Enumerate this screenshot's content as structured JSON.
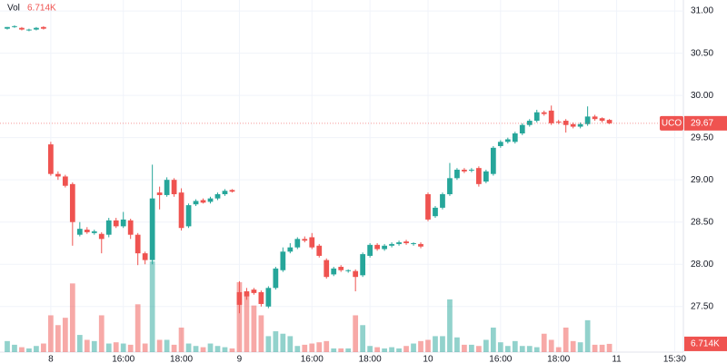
{
  "chart_data": {
    "type": "candlestick",
    "volume_label": "Vol",
    "last_volume_label": "6.714K",
    "symbol": "UCO",
    "up_color": "#26a69a",
    "down_color": "#ef5350",
    "grid": true,
    "categories": [
      null,
      null,
      null,
      null,
      null,
      null,
      null,
      null,
      null,
      null,
      null,
      null,
      null,
      null,
      null,
      null,
      null,
      null,
      null,
      null,
      null,
      null,
      null,
      null,
      null,
      null,
      null,
      null,
      null,
      null,
      null,
      null,
      null,
      null,
      null,
      null,
      null,
      null,
      null,
      null,
      null,
      null,
      null,
      null,
      null,
      null,
      null,
      null,
      null,
      null,
      null,
      null,
      null,
      null,
      null,
      null,
      null,
      null,
      null,
      null,
      null,
      null,
      null,
      null,
      null,
      null,
      null,
      null,
      null,
      null,
      null,
      null,
      null,
      null,
      null,
      null,
      null,
      null,
      null,
      null,
      null,
      null,
      null,
      null
    ],
    "open": [
      30.79,
      30.81,
      30.8,
      30.77,
      30.78,
      30.81,
      29.42,
      29.07,
      29.04,
      28.95,
      28.35,
      28.41,
      28.37,
      28.36,
      28.35,
      28.52,
      28.45,
      28.52,
      28.35,
      28.13,
      28.05,
      28.85,
      28.82,
      29.0,
      28.85,
      28.45,
      28.71,
      28.76,
      28.74,
      28.78,
      28.83,
      28.88,
      27.67,
      27.68,
      27.7,
      27.67,
      27.5,
      27.72,
      27.93,
      28.15,
      28.2,
      28.3,
      28.32,
      28.22,
      28.05,
      27.88,
      27.97,
      27.92,
      27.92,
      27.87,
      28.1,
      28.23,
      28.18,
      28.22,
      28.24,
      28.27,
      28.24,
      28.24,
      28.83,
      28.57,
      28.67,
      28.83,
      29.02,
      29.12,
      29.11,
      29.14,
      28.98,
      29.07,
      29.4,
      29.45,
      29.45,
      29.55,
      29.65,
      29.7,
      29.8,
      29.82,
      29.69,
      29.7,
      29.66,
      29.63,
      29.66,
      29.75,
      29.73,
      29.71
    ],
    "high": [
      30.81,
      30.83,
      30.81,
      30.79,
      30.81,
      30.82,
      29.45,
      29.1,
      29.06,
      28.97,
      28.5,
      28.44,
      28.41,
      28.38,
      28.55,
      28.55,
      28.62,
      28.54,
      28.37,
      28.15,
      29.18,
      28.92,
      29.03,
      29.02,
      28.9,
      28.72,
      28.77,
      28.78,
      28.8,
      28.85,
      28.89,
      28.89,
      27.8,
      27.72,
      27.72,
      27.69,
      27.74,
      27.97,
      28.2,
      28.25,
      28.32,
      28.33,
      28.37,
      28.24,
      28.07,
      27.97,
      27.99,
      27.94,
      27.94,
      28.14,
      28.25,
      28.25,
      28.24,
      28.26,
      28.28,
      28.29,
      28.26,
      28.26,
      28.85,
      28.69,
      28.85,
      29.2,
      29.14,
      29.14,
      29.14,
      29.16,
      29.12,
      29.4,
      29.47,
      29.5,
      29.57,
      29.67,
      29.72,
      29.83,
      29.82,
      29.88,
      29.71,
      29.72,
      29.68,
      29.68,
      29.87,
      29.77,
      29.74,
      29.72
    ],
    "low": [
      30.78,
      30.8,
      30.77,
      30.76,
      30.77,
      30.78,
      29.05,
      29.0,
      28.91,
      28.22,
      28.33,
      28.36,
      28.35,
      28.13,
      28.32,
      28.43,
      28.43,
      28.3,
      27.99,
      28.0,
      28.0,
      28.65,
      28.8,
      28.8,
      28.4,
      28.43,
      28.69,
      28.72,
      28.72,
      28.76,
      28.81,
      28.85,
      27.42,
      27.58,
      27.64,
      27.5,
      27.48,
      27.7,
      27.91,
      28.13,
      28.18,
      28.26,
      28.18,
      28.08,
      27.83,
      27.86,
      27.91,
      27.9,
      27.68,
      27.85,
      28.08,
      28.16,
      28.16,
      28.2,
      28.22,
      28.23,
      28.22,
      28.19,
      28.51,
      28.55,
      28.65,
      28.81,
      29.0,
      29.08,
      29.09,
      28.92,
      28.96,
      29.05,
      29.38,
      29.43,
      29.43,
      29.53,
      29.63,
      29.68,
      29.76,
      29.65,
      29.66,
      29.56,
      29.61,
      29.61,
      29.64,
      29.7,
      29.68,
      29.66
    ],
    "close": [
      30.81,
      30.82,
      30.78,
      30.78,
      30.8,
      30.79,
      29.07,
      29.04,
      28.93,
      28.5,
      28.42,
      28.38,
      28.39,
      28.3,
      28.52,
      28.45,
      28.53,
      28.35,
      28.13,
      28.05,
      28.78,
      28.82,
      29.0,
      28.83,
      28.43,
      28.7,
      28.75,
      28.73,
      28.78,
      28.83,
      28.87,
      28.86,
      27.52,
      27.62,
      27.66,
      27.53,
      27.72,
      27.95,
      28.15,
      28.2,
      28.3,
      28.28,
      28.2,
      28.1,
      27.85,
      27.95,
      27.93,
      27.93,
      27.85,
      28.12,
      28.23,
      28.18,
      28.22,
      28.24,
      28.26,
      28.25,
      28.25,
      28.21,
      28.53,
      28.67,
      28.83,
      29.02,
      29.12,
      29.1,
      29.12,
      28.95,
      29.1,
      29.38,
      29.45,
      29.48,
      29.55,
      29.65,
      29.7,
      29.8,
      29.78,
      29.67,
      29.68,
      29.65,
      29.63,
      29.66,
      29.75,
      29.72,
      29.7,
      29.67
    ],
    "volume": [
      9,
      6,
      4,
      3,
      5,
      7,
      30,
      22,
      28,
      56,
      14,
      10,
      9,
      30,
      7,
      8,
      7,
      6,
      39,
      7,
      74,
      10,
      10,
      6,
      20,
      7,
      5,
      4,
      7,
      5,
      4,
      3,
      57,
      48,
      38,
      30,
      13,
      17,
      15,
      13,
      5,
      6,
      7,
      8,
      9,
      3,
      3,
      3,
      30,
      22,
      5,
      4,
      3,
      4,
      3,
      5,
      7,
      9,
      10,
      13,
      13,
      43,
      12,
      6,
      6,
      5,
      10,
      20,
      8,
      5,
      9,
      5,
      5,
      4,
      15,
      10,
      4,
      20,
      9,
      8,
      26,
      6,
      6,
      6.714
    ],
    "xlim": [
      -1,
      93.2
    ],
    "xticks": [
      {
        "value": 6,
        "label": "8"
      },
      {
        "value": 16,
        "label": "16:00"
      },
      {
        "value": 24,
        "label": "18:00"
      },
      {
        "value": 32,
        "label": "9"
      },
      {
        "value": 42,
        "label": "16:00"
      },
      {
        "value": 50,
        "label": "18:00"
      },
      {
        "value": 58,
        "label": "10"
      },
      {
        "value": 68,
        "label": "16:00"
      },
      {
        "value": 76,
        "label": "18:00"
      },
      {
        "value": 84,
        "label": "11"
      },
      {
        "value": 92,
        "label": "15:30"
      }
    ],
    "ylim": [
      26.96,
      31.13
    ],
    "yticks": [
      {
        "value": 27.5,
        "label": "27.50"
      },
      {
        "value": 28,
        "label": "28.00"
      },
      {
        "value": 28.5,
        "label": "28.50"
      },
      {
        "value": 29,
        "label": "29.00"
      },
      {
        "value": 29.5,
        "label": "29.50"
      },
      {
        "value": 30,
        "label": "30.00"
      },
      {
        "value": 30.5,
        "label": "30.50"
      },
      {
        "value": 31,
        "label": "31.00"
      }
    ]
  }
}
